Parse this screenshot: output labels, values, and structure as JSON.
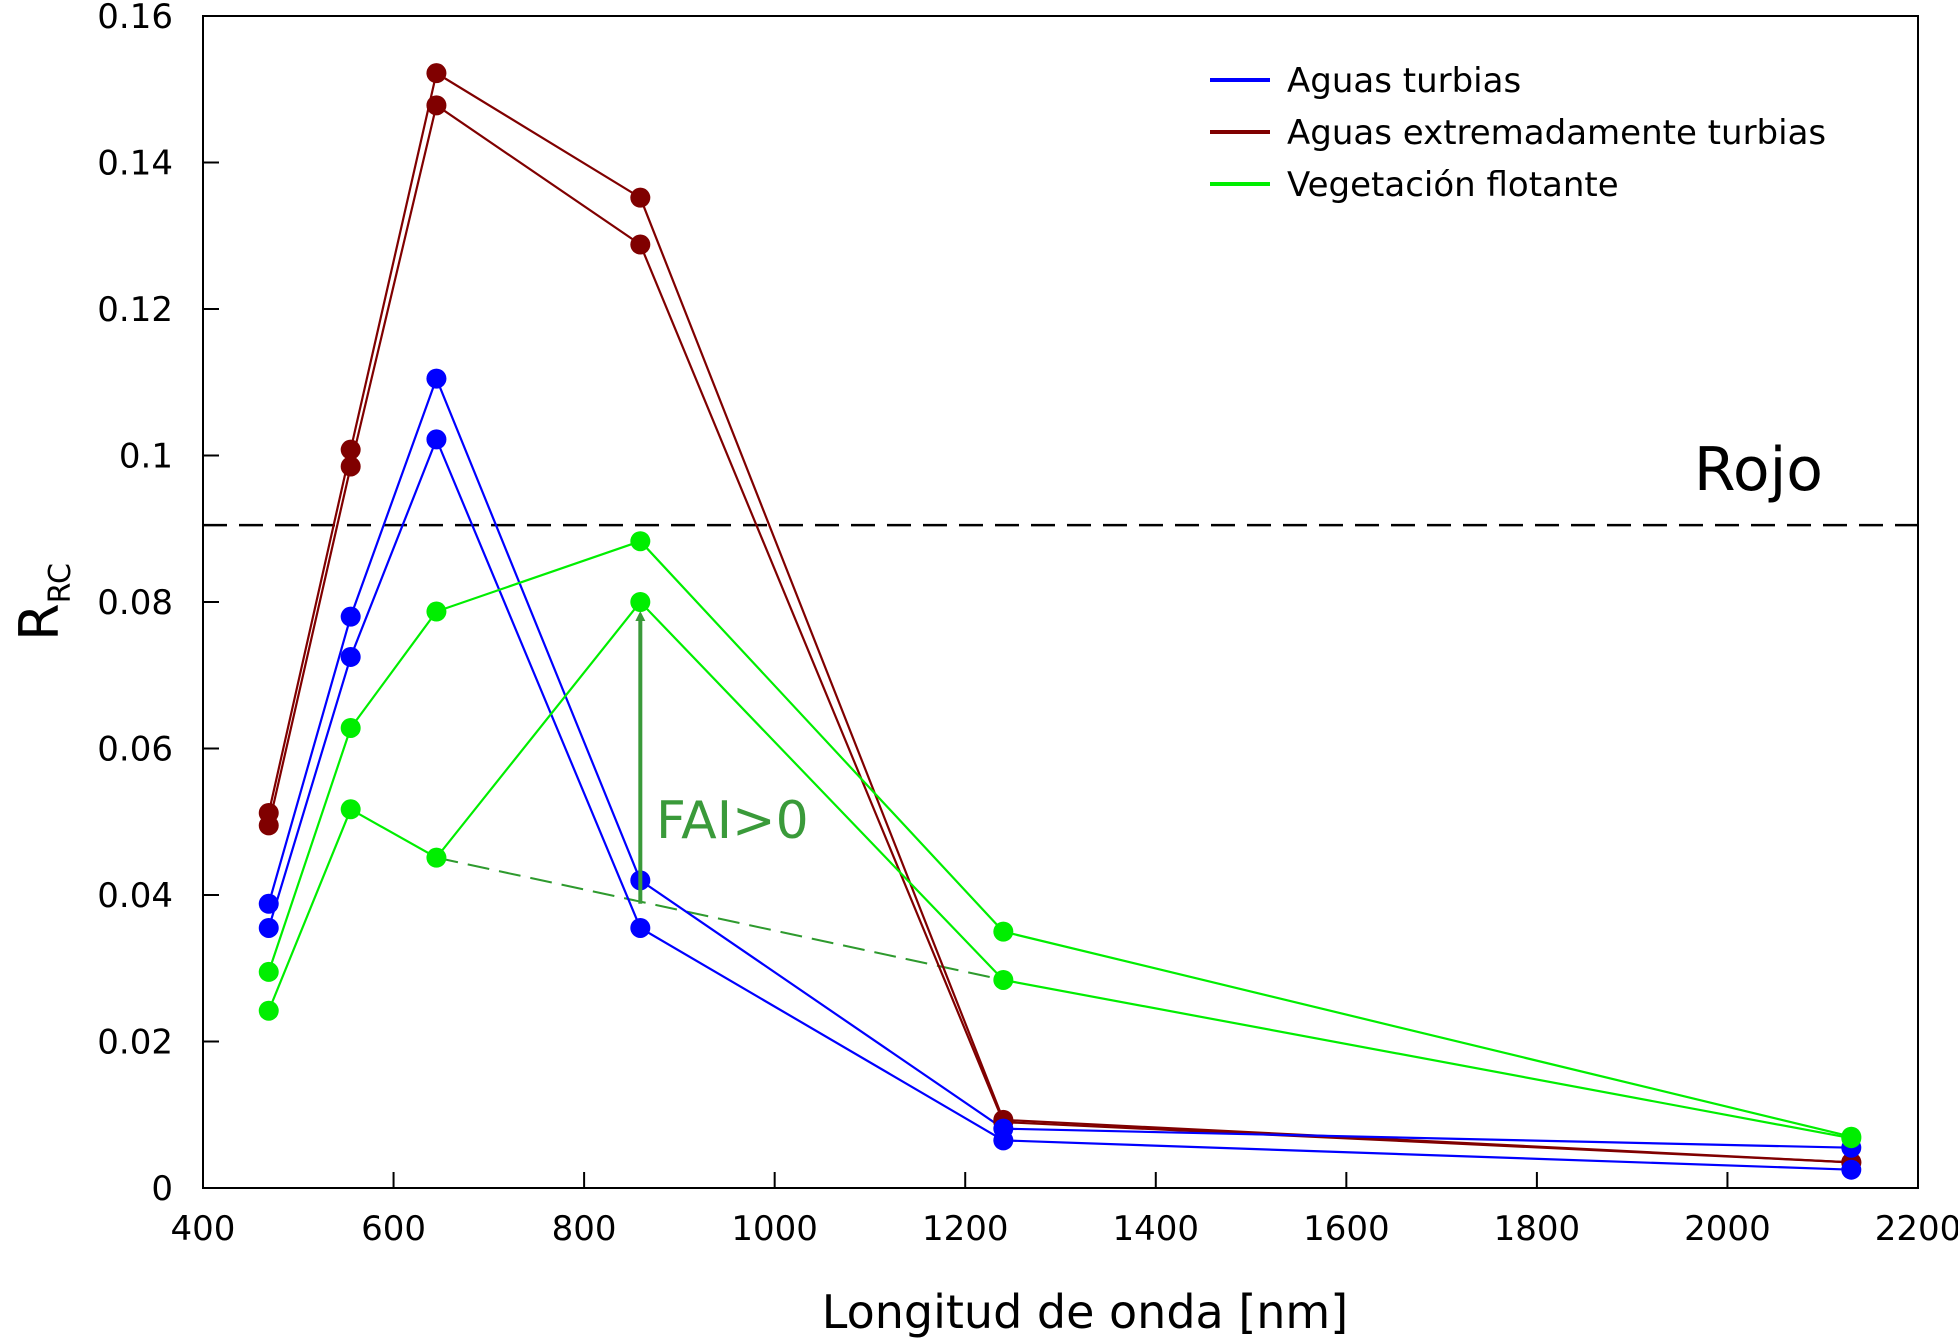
{
  "chart_data": {
    "type": "line",
    "title": "",
    "xlabel": "Longitud de onda [nm]",
    "ylabel": "R",
    "ylabel_sub": "RC",
    "xlim": [
      400,
      2200
    ],
    "ylim": [
      0,
      0.16
    ],
    "x_ticks": [
      400,
      600,
      800,
      1000,
      1200,
      1400,
      1600,
      1800,
      2000,
      2200
    ],
    "x_tick_labels": [
      "400",
      "600",
      "800",
      "1000",
      "1200",
      "1400",
      "1600",
      "1800",
      "2000",
      "2200"
    ],
    "y_ticks": [
      0,
      0.02,
      0.04,
      0.06,
      0.08,
      0.1,
      0.12,
      0.14,
      0.16
    ],
    "y_tick_labels": [
      "0",
      "0.02",
      "0.04",
      "0.06",
      "0.08",
      "0.1",
      "0.12",
      "0.14",
      "0.16"
    ],
    "grid": false,
    "legend_position": "top-right",
    "legend": [
      {
        "label": "Aguas turbias",
        "color": "#0000ff"
      },
      {
        "label": "Aguas extremadamente turbias",
        "color": "#800000"
      },
      {
        "label": "Vegetación flotante",
        "color": "#00ee00"
      }
    ],
    "x": [
      469,
      555,
      645,
      859,
      1240,
      2130
    ],
    "series": [
      {
        "group": "Aguas extremadamente turbias",
        "color": "#800000",
        "values": [
          0.0512,
          0.1008,
          0.1522,
          0.1352,
          0.0093,
          0.0035
        ]
      },
      {
        "group": "Aguas extremadamente turbias",
        "color": "#800000",
        "values": [
          0.0495,
          0.0985,
          0.1478,
          0.1288,
          0.009,
          0.0035
        ]
      },
      {
        "group": "Aguas turbias",
        "color": "#0000ff",
        "values": [
          0.0388,
          0.078,
          0.1105,
          0.042,
          0.0081,
          0.0055
        ]
      },
      {
        "group": "Aguas turbias",
        "color": "#0000ff",
        "values": [
          0.0355,
          0.0725,
          0.1022,
          0.0355,
          0.0065,
          0.0025
        ]
      },
      {
        "group": "Vegetación flotante",
        "color": "#00ee00",
        "values": [
          0.0295,
          0.0628,
          0.0787,
          0.0883,
          0.035,
          0.007
        ]
      },
      {
        "group": "Vegetación flotante",
        "color": "#00ee00",
        "values": [
          0.0242,
          0.0517,
          0.0451,
          0.08,
          0.0284,
          0.0068
        ]
      }
    ],
    "annotations": {
      "reference_line": {
        "y": 0.0905,
        "label": "Rojo",
        "color": "#000000",
        "style": "dashed"
      },
      "baseline": {
        "x1": 645,
        "y1": 0.0451,
        "x2": 1240,
        "y2": 0.0284,
        "color": "#2e9a2e",
        "style": "dashed"
      },
      "arrow": {
        "x": 859,
        "y_from": 0.0388,
        "y_to": 0.08,
        "label": "FAI>0",
        "color": "#3a9a3a"
      }
    }
  }
}
